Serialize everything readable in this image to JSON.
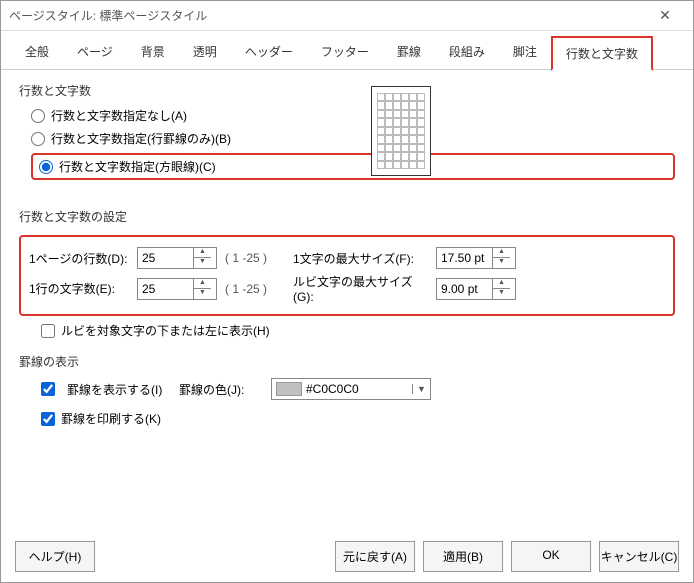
{
  "title": "ページスタイル: 標準ページスタイル",
  "tabs": [
    "全般",
    "ページ",
    "背景",
    "透明",
    "ヘッダー",
    "フッター",
    "罫線",
    "段組み",
    "脚注",
    "行数と文字数"
  ],
  "active_tab_index": 9,
  "section1": {
    "heading": "行数と文字数",
    "radios": [
      {
        "label": "行数と文字数指定なし(A)",
        "checked": false
      },
      {
        "label": "行数と文字数指定(行罫線のみ)(B)",
        "checked": false
      },
      {
        "label": "行数と文字数指定(方眼線)(C)",
        "checked": true,
        "highlight": true
      }
    ]
  },
  "section2": {
    "heading": "行数と文字数の設定",
    "lines_per_page": {
      "label": "1ページの行数(D):",
      "value": "25",
      "range": "( 1 -25 )"
    },
    "chars_per_line": {
      "label": "1行の文字数(E):",
      "value": "25",
      "range": "( 1 -25 )"
    },
    "char_max_size": {
      "label": "1文字の最大サイズ(F):",
      "value": "17.50 pt"
    },
    "ruby_max_size": {
      "label": "ルビ文字の最大サイズ(G):",
      "value": "9.00 pt"
    },
    "ruby_below": {
      "label": "ルビを対象文字の下または左に表示(H)",
      "checked": false
    }
  },
  "section3": {
    "heading": "罫線の表示",
    "show_lines": {
      "label": "罫線を表示する(I)",
      "checked": true
    },
    "print_lines": {
      "label": "罫線を印刷する(K)",
      "checked": true
    },
    "color": {
      "label": "罫線の色(J):",
      "value": "#C0C0C0",
      "swatch": "#c0c0c0"
    }
  },
  "buttons": {
    "help": "ヘルプ(H)",
    "reset": "元に戻す(A)",
    "apply": "適用(B)",
    "ok": "OK",
    "cancel": "キャンセル(C)"
  }
}
